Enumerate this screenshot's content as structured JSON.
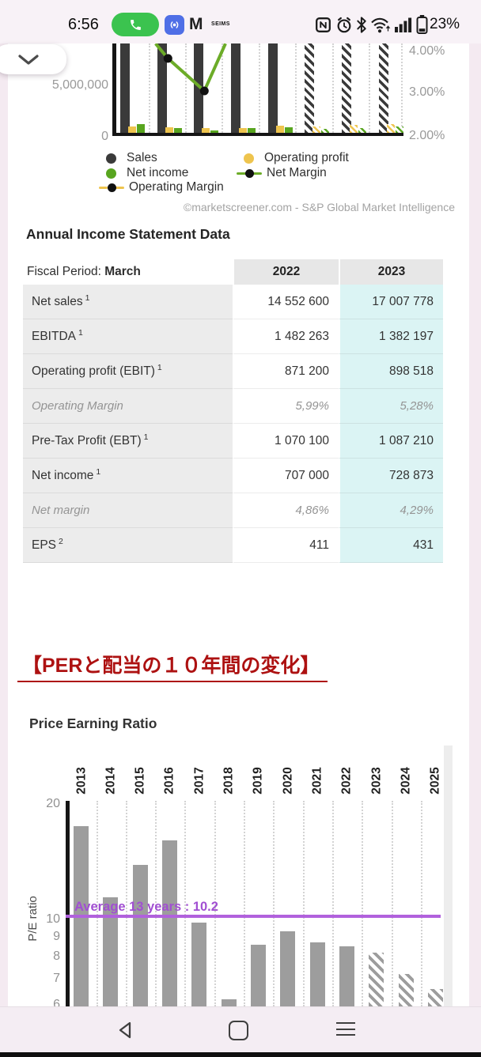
{
  "status_bar": {
    "time": "6:56",
    "badge_text": "SEIMS",
    "battery_percent": "23%"
  },
  "chart_data": [
    {
      "id": "income-statement-chart",
      "type": "bar+line",
      "left_axis_ticks": [
        "5,000,000",
        "0"
      ],
      "right_axis_ticks": [
        "4.00%",
        "3.00%",
        "2.00%"
      ],
      "periods_estimated_mask": [
        false,
        false,
        false,
        false,
        false,
        true,
        true,
        true
      ],
      "series": [
        {
          "name": "Sales",
          "type": "bar",
          "color": "#3a3a3a",
          "clipped_above_view": true,
          "values_millions_approx": [
            14.0,
            14.2,
            13.8,
            14.1,
            14.55,
            17.01,
            17.7,
            18.3
          ]
        },
        {
          "name": "Operating profit",
          "type": "bar",
          "color": "#eec44e",
          "values_millions_approx": [
            0.63,
            0.55,
            0.47,
            0.43,
            0.7,
            0.63,
            0.78,
            0.86
          ]
        },
        {
          "name": "Net income",
          "type": "bar",
          "color": "#58a51f",
          "values_millions_approx": [
            0.86,
            0.47,
            0.23,
            0.47,
            0.55,
            0.39,
            0.47,
            0.63
          ]
        },
        {
          "name": "Net Margin",
          "type": "line",
          "color": "#6cac28",
          "visible_points": [
            {
              "fx": 0.1486,
              "pct": 4.17,
              "dot": false
            },
            {
              "fx": 0.191,
              "pct": 3.81,
              "dot": true
            },
            {
              "fx": 0.316,
              "pct": 3.02,
              "dot": true
            },
            {
              "fx": 0.3886,
              "pct": 4.17,
              "dot": false
            }
          ]
        },
        {
          "name": "Operating Margin",
          "type": "line",
          "color": "#eec44e",
          "visible_points": []
        }
      ],
      "legend": [
        {
          "label": "Sales",
          "marker": "dot",
          "color": "#3a3a3a"
        },
        {
          "label": "Operating profit",
          "marker": "dot",
          "color": "#eec44e"
        },
        {
          "label": "Net income",
          "marker": "dot",
          "color": "#58a51f"
        },
        {
          "label": "Net Margin",
          "marker": "line-dot",
          "color": "#6cac28"
        },
        {
          "label": "Operating Margin",
          "marker": "dashed-line-dot",
          "color": "#eec44e"
        }
      ],
      "attribution": "©marketscreener.com - S&P Global Market Intelligence"
    },
    {
      "id": "price-earning-ratio-chart",
      "type": "bar",
      "title": "Price Earning Ratio",
      "ylabel": "P/E ratio",
      "yscale": "log",
      "yticks": [
        20,
        10,
        9,
        8,
        7,
        6
      ],
      "categories": [
        "2013",
        "2014",
        "2015",
        "2016",
        "2017",
        "2018",
        "2019",
        "2020",
        "2021",
        "2022",
        "2023",
        "2024",
        "2025"
      ],
      "values": [
        17.5,
        11.4,
        13.9,
        16.1,
        9.8,
        6.2,
        8.6,
        9.3,
        8.7,
        8.5,
        8.2,
        7.2,
        6.6
      ],
      "estimated_categories": [
        "2023",
        "2024",
        "2025"
      ],
      "bar_color": "#9d9d9d",
      "grid": "vertical-dotted",
      "average_line": {
        "label": "Average 13 years : 10.2",
        "value": 10.2,
        "color": "#b161dd"
      }
    }
  ],
  "income_table": {
    "title": "Annual Income Statement Data",
    "fiscal_period_label": "Fiscal Period:",
    "fiscal_period_value": "March",
    "year_columns": [
      "2022",
      "2023"
    ],
    "rows": [
      {
        "label": "Net sales",
        "sup": "1",
        "values": [
          "14 552 600",
          "17 007 778"
        ],
        "italic": false
      },
      {
        "label": "EBITDA",
        "sup": "1",
        "values": [
          "1 482 263",
          "1 382 197"
        ],
        "italic": false
      },
      {
        "label": "Operating profit (EBIT)",
        "sup": "1",
        "values": [
          "871 200",
          "898 518"
        ],
        "italic": false
      },
      {
        "label": "Operating Margin",
        "sup": "",
        "values": [
          "5,99%",
          "5,28%"
        ],
        "italic": true
      },
      {
        "label": "Pre-Tax Profit (EBT)",
        "sup": "1",
        "values": [
          "1 070 100",
          "1 087 210"
        ],
        "italic": false
      },
      {
        "label": "Net income",
        "sup": "1",
        "values": [
          "707 000",
          "728 873"
        ],
        "italic": false
      },
      {
        "label": "Net margin",
        "sup": "",
        "values": [
          "4,86%",
          "4,29%"
        ],
        "italic": true
      },
      {
        "label": "EPS",
        "sup": "2",
        "values": [
          "411",
          "431"
        ],
        "italic": false
      }
    ]
  },
  "section_heading": "【PERと配当の１０年間の変化】"
}
